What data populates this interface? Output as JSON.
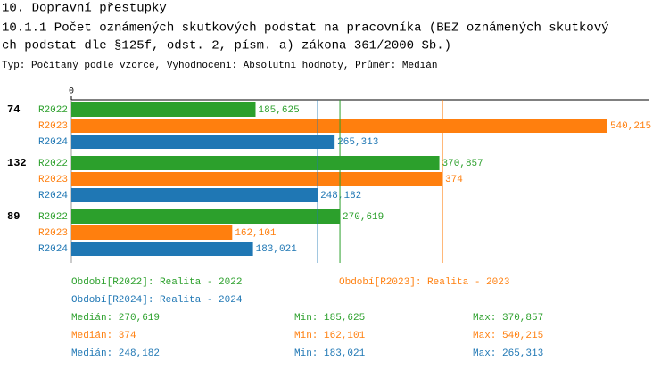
{
  "header": {
    "title": "10. Dopravní přestupky",
    "subtitle": [
      "10.1.1 Počet oznámených skutkových podstat na pracovníka (BEZ oznámených skutkový",
      "ch podstat dle §125f, odst. 2, písm. a) zákona 361/2000 Sb.)"
    ],
    "type_line": "Typ: Počítaný podle vzorce, Vyhodnocení: Absolutní hodnoty, Průměr: Medián"
  },
  "chart_data": {
    "type": "bar",
    "orientation": "horizontal",
    "categories": [
      "74",
      "132",
      "89"
    ],
    "xlim": [
      0,
      582.5
    ],
    "xticks": [
      0
    ],
    "stat_labels": {
      "median": "Medián:",
      "min": "Min:",
      "max": "Max:"
    },
    "series": [
      {
        "name": "R2022",
        "color": "#2ca02c",
        "legend": "Období[R2022]: Realita - 2022",
        "values": [
          185.625,
          370.857,
          270.619
        ],
        "value_labels": [
          "185,625",
          "370,857",
          "270,619"
        ],
        "median": 270.619,
        "median_label": "270,619",
        "min": 185.625,
        "min_label": "185,625",
        "max": 370.857,
        "max_label": "370,857"
      },
      {
        "name": "R2023",
        "color": "#ff7f0e",
        "legend": "Období[R2023]: Realita - 2023",
        "values": [
          540.215,
          374,
          162.101
        ],
        "value_labels": [
          "540,215",
          "374",
          "162,101"
        ],
        "median": 374,
        "median_label": "374",
        "min": 162.101,
        "min_label": "162,101",
        "max": 540.215,
        "max_label": "540,215"
      },
      {
        "name": "R2024",
        "color": "#1f77b4",
        "legend": "Období[R2024]: Realita - 2024",
        "values": [
          265.313,
          248.182,
          183.021
        ],
        "value_labels": [
          "265,313",
          "248,182",
          "183,021"
        ],
        "median": 248.182,
        "median_label": "248,182",
        "min": 183.021,
        "min_label": "183,021",
        "max": 265.313,
        "max_label": "265,313"
      }
    ]
  }
}
